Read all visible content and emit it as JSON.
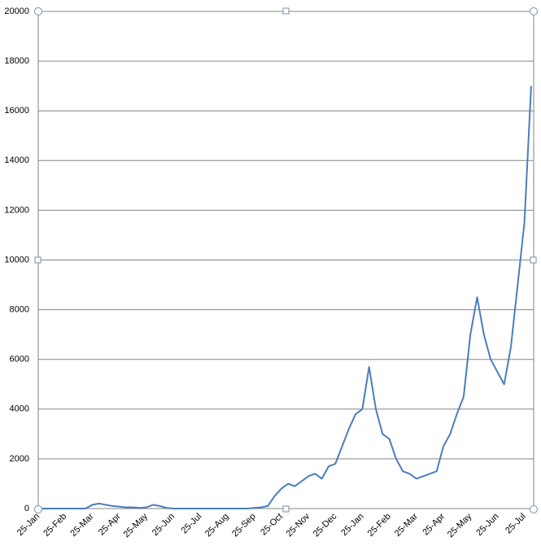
{
  "chart_data": {
    "type": "line",
    "color": "#4a7ebb",
    "categories": [
      "25-Jan",
      null,
      null,
      null,
      "25-Feb",
      null,
      null,
      null,
      "25-Mar",
      null,
      null,
      null,
      "25-Apr",
      null,
      null,
      null,
      "25-May",
      null,
      null,
      null,
      "25-Jun",
      null,
      null,
      null,
      "25-Jul",
      null,
      null,
      null,
      "25-Aug",
      null,
      null,
      null,
      "25-Sep",
      null,
      null,
      null,
      "25-Oct",
      null,
      null,
      null,
      "25-Nov",
      null,
      null,
      null,
      "25-Dec",
      null,
      null,
      null,
      "25-Jan",
      null,
      null,
      null,
      "25-Feb",
      null,
      null,
      null,
      "25-Mar",
      null,
      null,
      null,
      "25-Apr",
      null,
      null,
      null,
      "25-May",
      null,
      null,
      null,
      "25-Jun",
      null,
      null,
      null,
      "25-Jul",
      null
    ],
    "values": [
      0,
      0,
      0,
      0,
      0,
      0,
      0,
      0,
      150,
      200,
      150,
      100,
      80,
      50,
      50,
      30,
      50,
      150,
      100,
      30,
      0,
      0,
      0,
      0,
      0,
      0,
      0,
      0,
      0,
      0,
      0,
      0,
      30,
      50,
      100,
      500,
      800,
      1000,
      900,
      1100,
      1300,
      1400,
      1200,
      1700,
      1800,
      2500,
      3200,
      3800,
      4000,
      5700,
      4000,
      3000,
      2800,
      2000,
      1500,
      1400,
      1200,
      1300,
      1400,
      1500,
      2500,
      3000,
      3800,
      4500,
      7000,
      8500,
      7000,
      6000,
      5500,
      5000,
      6500,
      9000,
      11500,
      17000
    ],
    "ylim": [
      0,
      20000
    ],
    "yticks": [
      0,
      2000,
      4000,
      6000,
      8000,
      10000,
      12000,
      14000,
      16000,
      18000,
      20000
    ],
    "grid": true
  }
}
